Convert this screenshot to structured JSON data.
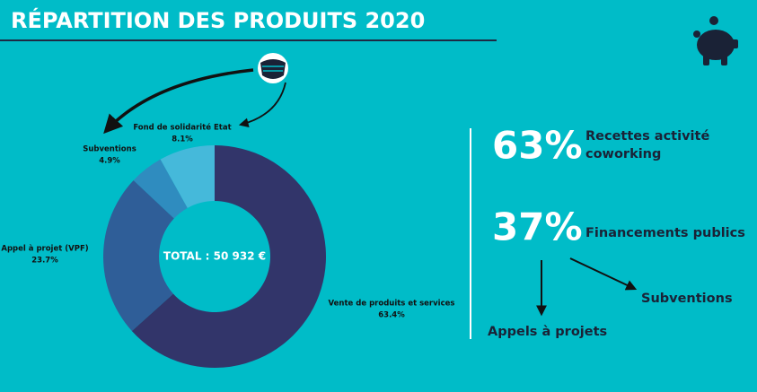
{
  "chart_data": {
    "type": "pie",
    "donut": true,
    "title": "RÉPARTITION DES PRODUITS 2020",
    "center_label": "TOTAL : 50 932 €",
    "categories": [
      "Vente de produits et services",
      "Appel à projet (VPF)",
      "Subventions",
      "Fond de solidarité Etat"
    ],
    "values": [
      63.4,
      23.7,
      4.9,
      8.1
    ],
    "value_labels": [
      "63.4%",
      "23.7%",
      "4.9%",
      "8.1%"
    ],
    "colors": [
      "#32356a",
      "#2f5e98",
      "#2f8cbf",
      "#45b9da"
    ]
  },
  "highlights": [
    {
      "figure": "63%",
      "lines": [
        "Recettes activité",
        "coworking"
      ]
    },
    {
      "figure": "37%",
      "lines": [
        "Financements publics"
      ]
    }
  ],
  "breakdown": [
    "Subventions",
    "Appels à projets"
  ]
}
